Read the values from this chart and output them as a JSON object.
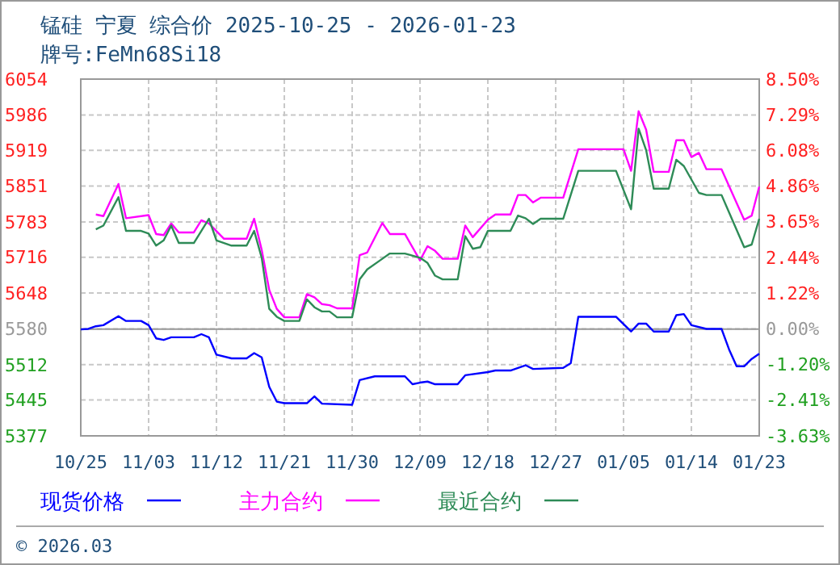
{
  "chart_data": {
    "type": "line",
    "title": "锰硅 宁夏 综合价 2025-10-25 - 2026-01-23",
    "subtitle": "牌号:FeMn68Si18",
    "xlim": [
      "2025-10-25",
      "2026-01-23"
    ],
    "xticks": [
      {
        "value": "2025-10-25",
        "label": "10/25"
      },
      {
        "value": "2025-11-03",
        "label": "11/03"
      },
      {
        "value": "2025-11-12",
        "label": "11/12"
      },
      {
        "value": "2025-11-21",
        "label": "11/21"
      },
      {
        "value": "2025-11-30",
        "label": "11/30"
      },
      {
        "value": "2025-12-09",
        "label": "12/09"
      },
      {
        "value": "2025-12-18",
        "label": "12/18"
      },
      {
        "value": "2025-12-27",
        "label": "12/27"
      },
      {
        "value": "2026-01-05",
        "label": "01/05"
      },
      {
        "value": "2026-01-14",
        "label": "01/14"
      },
      {
        "value": "2026-01-23",
        "label": "01/23"
      }
    ],
    "ylim": [
      5377,
      6054
    ],
    "yticks": [
      6054,
      5986,
      5919,
      5851,
      5783,
      5716,
      5648,
      5580,
      5512,
      5445,
      5377
    ],
    "y2lim": [
      -3.63,
      8.5
    ],
    "y2ticks": [
      {
        "value": 8.5,
        "label": "8.50%"
      },
      {
        "value": 7.29,
        "label": "7.29%"
      },
      {
        "value": 6.08,
        "label": "6.08%"
      },
      {
        "value": 4.86,
        "label": "4.86%"
      },
      {
        "value": 3.65,
        "label": "3.65%"
      },
      {
        "value": 2.44,
        "label": "2.44%"
      },
      {
        "value": 1.22,
        "label": "1.22%"
      },
      {
        "value": 0,
        "label": "0.00%"
      },
      {
        "value": -1.2,
        "label": "-1.20%"
      },
      {
        "value": -2.41,
        "label": "-2.41%"
      },
      {
        "value": -3.63,
        "label": "-3.63%"
      }
    ],
    "grid": true,
    "legend": "bottom",
    "marker": "none",
    "line_style": "solid",
    "ref_lines": [
      {
        "axis": "y2",
        "value": 0,
        "color": "#999999",
        "line_style": "solid"
      }
    ],
    "annotations": [
      "© 2026.03"
    ],
    "series": [
      {
        "name": "现货价格",
        "color": "#0000ff",
        "x": [
          "2025-10-25",
          "2025-10-26",
          "2025-10-27",
          "2025-10-28",
          "2025-10-30",
          "2025-10-31",
          "2025-11-02",
          "2025-11-03",
          "2025-11-04",
          "2025-11-05",
          "2025-11-06",
          "2025-11-09",
          "2025-11-10",
          "2025-11-11",
          "2025-11-12",
          "2025-11-14",
          "2025-11-16",
          "2025-11-17",
          "2025-11-18",
          "2025-11-19",
          "2025-11-20",
          "2025-11-21",
          "2025-11-24",
          "2025-11-25",
          "2025-11-26",
          "2025-11-30",
          "2025-12-01",
          "2025-12-03",
          "2025-12-07",
          "2025-12-08",
          "2025-12-09",
          "2025-12-10",
          "2025-12-11",
          "2025-12-14",
          "2025-12-15",
          "2025-12-18",
          "2025-12-19",
          "2025-12-21",
          "2025-12-23",
          "2025-12-24",
          "2025-12-28",
          "2025-12-29",
          "2025-12-30",
          "2026-01-04",
          "2026-01-06",
          "2026-01-07",
          "2026-01-08",
          "2026-01-09",
          "2026-01-11",
          "2026-01-12",
          "2026-01-13",
          "2026-01-14",
          "2026-01-16",
          "2026-01-18",
          "2026-01-19",
          "2026-01-20",
          "2026-01-21",
          "2026-01-22",
          "2026-01-23"
        ],
        "values": [
          5579,
          5580,
          5585,
          5587,
          5604,
          5595,
          5595,
          5587,
          5562,
          5559,
          5564,
          5564,
          5570,
          5564,
          5531,
          5524,
          5524,
          5534,
          5526,
          5470,
          5442,
          5439,
          5439,
          5452,
          5438,
          5436,
          5483,
          5490,
          5490,
          5475,
          5478,
          5480,
          5475,
          5475,
          5492,
          5498,
          5501,
          5501,
          5511,
          5504,
          5506,
          5515,
          5603,
          5603,
          5575,
          5590,
          5590,
          5575,
          5575,
          5606,
          5608,
          5587,
          5580,
          5580,
          5541,
          5509,
          5509,
          5523,
          5533
        ]
      },
      {
        "name": "主力合约",
        "color": "#ff00ff",
        "x": [
          "2025-10-27",
          "2025-10-28",
          "2025-10-30",
          "2025-10-31",
          "2025-11-03",
          "2025-11-04",
          "2025-11-05",
          "2025-11-06",
          "2025-11-07",
          "2025-11-09",
          "2025-11-10",
          "2025-11-11",
          "2025-11-13",
          "2025-11-16",
          "2025-11-17",
          "2025-11-18",
          "2025-11-19",
          "2025-11-20",
          "2025-11-21",
          "2025-11-23",
          "2025-11-24",
          "2025-11-25",
          "2025-11-26",
          "2025-11-27",
          "2025-11-28",
          "2025-11-30",
          "2025-12-01",
          "2025-12-02",
          "2025-12-04",
          "2025-12-05",
          "2025-12-07",
          "2025-12-09",
          "2025-12-10",
          "2025-12-11",
          "2025-12-12",
          "2025-12-14",
          "2025-12-15",
          "2025-12-16",
          "2025-12-18",
          "2025-12-19",
          "2025-12-21",
          "2025-12-22",
          "2025-12-23",
          "2025-12-24",
          "2025-12-25",
          "2025-12-28",
          "2025-12-30",
          "2026-01-05",
          "2026-01-06",
          "2026-01-07",
          "2026-01-08",
          "2026-01-09",
          "2026-01-11",
          "2026-01-12",
          "2026-01-13",
          "2026-01-14",
          "2026-01-15",
          "2026-01-16",
          "2026-01-18",
          "2026-01-21",
          "2026-01-22",
          "2026-01-23"
        ],
        "values": [
          5797,
          5794,
          5855,
          5790,
          5796,
          5760,
          5758,
          5780,
          5763,
          5763,
          5786,
          5780,
          5751,
          5751,
          5789,
          5730,
          5654,
          5618,
          5602,
          5602,
          5646,
          5640,
          5627,
          5625,
          5619,
          5619,
          5720,
          5725,
          5781,
          5760,
          5760,
          5710,
          5737,
          5728,
          5713,
          5713,
          5776,
          5754,
          5787,
          5797,
          5797,
          5834,
          5834,
          5820,
          5829,
          5829,
          5921,
          5921,
          5880,
          5993,
          5958,
          5878,
          5878,
          5938,
          5938,
          5906,
          5914,
          5883,
          5883,
          5787,
          5795,
          5850
        ]
      },
      {
        "name": "最近合约",
        "color": "#2e8b57",
        "x": [
          "2025-10-27",
          "2025-10-28",
          "2025-10-30",
          "2025-10-31",
          "2025-11-02",
          "2025-11-03",
          "2025-11-04",
          "2025-11-05",
          "2025-11-06",
          "2025-11-07",
          "2025-11-09",
          "2025-11-11",
          "2025-11-12",
          "2025-11-14",
          "2025-11-16",
          "2025-11-17",
          "2025-11-18",
          "2025-11-19",
          "2025-11-20",
          "2025-11-21",
          "2025-11-23",
          "2025-11-24",
          "2025-11-25",
          "2025-11-26",
          "2025-11-27",
          "2025-11-28",
          "2025-11-30",
          "2025-12-01",
          "2025-12-02",
          "2025-12-04",
          "2025-12-05",
          "2025-12-07",
          "2025-12-09",
          "2025-12-10",
          "2025-12-11",
          "2025-12-12",
          "2025-12-14",
          "2025-12-15",
          "2025-12-16",
          "2025-12-17",
          "2025-12-18",
          "2025-12-21",
          "2025-12-22",
          "2025-12-23",
          "2025-12-24",
          "2025-12-25",
          "2025-12-28",
          "2025-12-30",
          "2026-01-04",
          "2026-01-06",
          "2026-01-07",
          "2026-01-08",
          "2026-01-09",
          "2026-01-11",
          "2026-01-12",
          "2026-01-13",
          "2026-01-15",
          "2026-01-16",
          "2026-01-18",
          "2026-01-21",
          "2026-01-22",
          "2026-01-23"
        ],
        "values": [
          5769,
          5776,
          5830,
          5766,
          5766,
          5761,
          5738,
          5748,
          5776,
          5743,
          5743,
          5789,
          5748,
          5738,
          5738,
          5766,
          5715,
          5618,
          5603,
          5595,
          5595,
          5636,
          5621,
          5613,
          5613,
          5602,
          5602,
          5674,
          5693,
          5713,
          5723,
          5723,
          5715,
          5705,
          5681,
          5674,
          5674,
          5756,
          5732,
          5735,
          5766,
          5766,
          5795,
          5790,
          5779,
          5789,
          5789,
          5880,
          5880,
          5807,
          5960,
          5919,
          5846,
          5846,
          5901,
          5889,
          5838,
          5834,
          5834,
          5735,
          5740,
          5789
        ]
      }
    ]
  }
}
